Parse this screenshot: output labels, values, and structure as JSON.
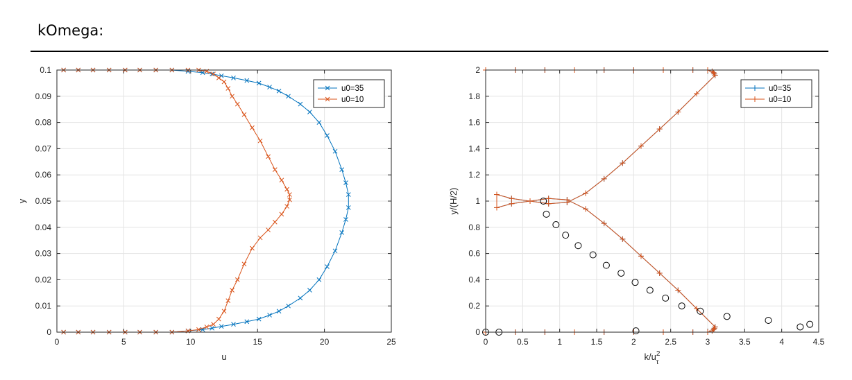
{
  "heading": "kOmega:",
  "chart_data": [
    {
      "type": "line",
      "xlabel": "u",
      "ylabel": "y",
      "xlim": [
        0,
        25
      ],
      "ylim": [
        0,
        0.1
      ],
      "xticks": [
        0,
        5,
        10,
        15,
        20,
        25
      ],
      "yticks": [
        0,
        0.01,
        0.02,
        0.03,
        0.04,
        0.05,
        0.06,
        0.07,
        0.08,
        0.09,
        0.1
      ],
      "xtick_labels": [
        "0",
        "5",
        "10",
        "15",
        "20",
        "25"
      ],
      "ytick_labels": [
        "0",
        "0.01",
        "0.02",
        "0.03",
        "0.04",
        "0.05",
        "0.06",
        "0.07",
        "0.08",
        "0.09",
        "0.1"
      ],
      "grid": true,
      "legend_position": "top-right",
      "marker": "x",
      "series": [
        {
          "name": "u0=35",
          "color": "#0072BD",
          "x": [
            0.5,
            1.6,
            2.7,
            3.9,
            5.1,
            6.2,
            7.4,
            8.6,
            9.8,
            10.9,
            11.6,
            12.3,
            13.2,
            14.2,
            15.1,
            15.9,
            16.6,
            17.3,
            18.2,
            18.9,
            19.6,
            20.2,
            20.8,
            21.3,
            21.6,
            21.8,
            21.8,
            21.6,
            21.3,
            20.8,
            20.2,
            19.6,
            18.9,
            18.2,
            17.3,
            16.6,
            15.9,
            15.1,
            14.2,
            13.2,
            12.3,
            11.6,
            10.9,
            9.8,
            8.6,
            7.4,
            6.2,
            5.1,
            3.9,
            2.7,
            1.6,
            0.5
          ],
          "y": [
            0.0,
            0.0,
            0.0,
            0.0,
            0.0,
            0.0,
            0.0,
            0.0,
            0.0005,
            0.001,
            0.0015,
            0.0022,
            0.003,
            0.004,
            0.005,
            0.0065,
            0.008,
            0.01,
            0.013,
            0.016,
            0.02,
            0.025,
            0.031,
            0.038,
            0.043,
            0.0475,
            0.0525,
            0.057,
            0.062,
            0.069,
            0.075,
            0.08,
            0.084,
            0.087,
            0.09,
            0.092,
            0.0935,
            0.095,
            0.096,
            0.097,
            0.0978,
            0.0985,
            0.099,
            0.0995,
            0.1,
            0.1,
            0.1,
            0.1,
            0.1,
            0.1,
            0.1,
            0.1
          ]
        },
        {
          "name": "u0=10",
          "color": "#D95319",
          "x": [
            0.5,
            1.6,
            2.7,
            3.9,
            5.1,
            6.2,
            7.4,
            8.6,
            9.8,
            10.6,
            11.2,
            11.7,
            12.1,
            12.5,
            12.8,
            13.1,
            13.5,
            14.0,
            14.6,
            15.2,
            15.8,
            16.3,
            16.8,
            17.2,
            17.4,
            17.4,
            17.2,
            16.8,
            16.3,
            15.8,
            15.2,
            14.6,
            14.0,
            13.5,
            13.1,
            12.8,
            12.5,
            12.1,
            11.7,
            11.2,
            10.6,
            9.8,
            8.6,
            7.4,
            6.2,
            5.1,
            3.9,
            2.7,
            1.6,
            0.5
          ],
          "y": [
            0.0,
            0.0,
            0.0,
            0.0,
            0.0,
            0.0,
            0.0,
            0.0,
            0.0005,
            0.001,
            0.002,
            0.003,
            0.005,
            0.008,
            0.012,
            0.016,
            0.02,
            0.026,
            0.032,
            0.036,
            0.039,
            0.042,
            0.045,
            0.048,
            0.0505,
            0.0525,
            0.0545,
            0.058,
            0.062,
            0.067,
            0.073,
            0.078,
            0.083,
            0.087,
            0.09,
            0.093,
            0.0955,
            0.097,
            0.0985,
            0.0995,
            0.1,
            0.1,
            0.1,
            0.1,
            0.1,
            0.1,
            0.1,
            0.1,
            0.1,
            0.1
          ]
        }
      ]
    },
    {
      "type": "line",
      "xlabel": "k/u",
      "xlabel_sup": "2",
      "xlabel_sub": "τ",
      "ylabel": "y/(H/2)",
      "xlim": [
        0,
        4.5
      ],
      "ylim": [
        0,
        2
      ],
      "xticks": [
        0,
        0.5,
        1,
        1.5,
        2,
        2.5,
        3,
        3.5,
        4,
        4.5
      ],
      "yticks": [
        0,
        0.2,
        0.4,
        0.6,
        0.8,
        1,
        1.2,
        1.4,
        1.6,
        1.8,
        2
      ],
      "xtick_labels": [
        "0",
        "0.5",
        "1",
        "1.5",
        "2",
        "2.5",
        "3",
        "3.5",
        "4",
        "4.5"
      ],
      "ytick_labels": [
        "0",
        "0.2",
        "0.4",
        "0.6",
        "0.8",
        "1",
        "1.2",
        "1.4",
        "1.6",
        "1.8",
        "2"
      ],
      "grid": true,
      "legend_position": "top-right",
      "marker": "+",
      "series": [
        {
          "name": "u0=35",
          "color": "#0072BD",
          "x": [
            0.0,
            0.4,
            0.8,
            1.2,
            1.6,
            2.0,
            2.4,
            2.8,
            3.0,
            3.06,
            3.08,
            3.09,
            3.1,
            2.85,
            2.6,
            2.35,
            2.1,
            1.85,
            1.6,
            1.35,
            1.1,
            0.85,
            0.6,
            0.35,
            0.15,
            0.15,
            0.35,
            0.6,
            0.85,
            1.1,
            1.35,
            1.6,
            1.85,
            2.1,
            2.35,
            2.6,
            2.85,
            3.1,
            3.09,
            3.08,
            3.06,
            3.0,
            2.8,
            2.4,
            2.0,
            1.6,
            1.2,
            0.8,
            0.4,
            0.0
          ],
          "y": [
            0.0,
            0.0,
            0.0,
            0.0,
            0.0,
            0.0,
            0.0,
            0.0,
            0.0,
            0.01,
            0.02,
            0.03,
            0.04,
            0.18,
            0.32,
            0.45,
            0.58,
            0.71,
            0.83,
            0.94,
            1.01,
            1.02,
            1.0,
            0.98,
            0.95,
            1.05,
            1.02,
            1.0,
            0.98,
            0.99,
            1.06,
            1.17,
            1.29,
            1.42,
            1.55,
            1.68,
            1.82,
            1.96,
            1.97,
            1.98,
            1.99,
            2.0,
            2.0,
            2.0,
            2.0,
            2.0,
            2.0,
            2.0,
            2.0,
            2.0
          ]
        },
        {
          "name": "u0=10",
          "color": "#D95319",
          "x": [
            0.0,
            0.4,
            0.8,
            1.2,
            1.6,
            2.0,
            2.4,
            2.8,
            3.0,
            3.06,
            3.08,
            3.09,
            3.1,
            2.85,
            2.6,
            2.35,
            2.1,
            1.85,
            1.6,
            1.35,
            1.1,
            0.85,
            0.6,
            0.35,
            0.15,
            0.15,
            0.35,
            0.6,
            0.85,
            1.1,
            1.35,
            1.6,
            1.85,
            2.1,
            2.35,
            2.6,
            2.85,
            3.1,
            3.09,
            3.08,
            3.06,
            3.0,
            2.8,
            2.4,
            2.0,
            1.6,
            1.2,
            0.8,
            0.4,
            0.0
          ],
          "y": [
            0.0,
            0.0,
            0.0,
            0.0,
            0.0,
            0.0,
            0.0,
            0.0,
            0.0,
            0.01,
            0.02,
            0.03,
            0.04,
            0.18,
            0.32,
            0.45,
            0.58,
            0.71,
            0.83,
            0.94,
            1.01,
            1.02,
            1.0,
            0.98,
            0.95,
            1.05,
            1.02,
            1.0,
            0.98,
            0.99,
            1.06,
            1.17,
            1.29,
            1.42,
            1.55,
            1.68,
            1.82,
            1.96,
            1.97,
            1.98,
            1.99,
            2.0,
            2.0,
            2.0,
            2.0,
            2.0,
            2.0,
            2.0,
            2.0,
            2.0
          ]
        }
      ],
      "reference_points": {
        "marker": "o",
        "color": "#000000",
        "x": [
          0.0,
          0.18,
          0.78,
          0.82,
          0.95,
          1.08,
          1.25,
          1.45,
          1.63,
          1.83,
          2.02,
          2.03,
          2.22,
          2.43,
          2.65,
          2.9,
          3.26,
          3.82,
          4.25,
          4.38
        ],
        "y": [
          0.0,
          0.0,
          1.0,
          0.9,
          0.82,
          0.74,
          0.66,
          0.59,
          0.51,
          0.45,
          0.38,
          0.01,
          0.32,
          0.26,
          0.2,
          0.16,
          0.12,
          0.09,
          0.04,
          0.06
        ]
      }
    }
  ]
}
